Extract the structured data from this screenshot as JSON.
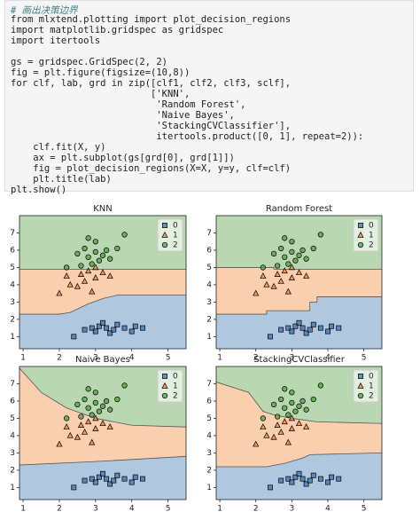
{
  "code": {
    "lines": [
      "# 画出决策边界",
      "from mlxtend.plotting import plot_decision_regions",
      "import matplotlib.gridspec as gridspec",
      "import itertools",
      "gs = gridspec.GridSpec(2, 2)",
      "fig = plt.figure(figsize=(10,8))",
      "for clf, lab, grd in zip([clf1, clf2, clf3, sclf],",
      "                         ['KNN',",
      "                          'Random Forest',",
      "                          'Naive Bayes',",
      "                          'StackingCVClassifier'],",
      "                          itertools.product([0, 1], repeat=2)):",
      "    clf.fit(X, y)",
      "    ax = plt.subplot(gs[grd[0], grd[1]])",
      "    fig = plot_decision_regions(X=X, y=y, clf=clf)",
      "    plt.title(lab)",
      "plt.show()"
    ]
  },
  "chart_data": [
    {
      "type": "decision_regions",
      "title": "KNN",
      "xlim": [
        0.9,
        5.5
      ],
      "ylim": [
        0.3,
        8.0
      ],
      "xticks": [
        1,
        2,
        3,
        4,
        5
      ],
      "yticks": [
        1,
        2,
        3,
        4,
        5,
        6,
        7
      ],
      "legend": "upper right",
      "series": [
        {
          "name": "0",
          "color": "#3a76af",
          "marker": "square",
          "x": [
            2.4,
            2.7,
            2.9,
            3.0,
            3.1,
            3.2,
            3.3,
            3.4,
            3.5,
            3.6,
            3.8,
            4.0,
            4.1,
            4.3
          ],
          "values": [
            1.0,
            1.4,
            1.5,
            1.3,
            1.6,
            1.8,
            1.5,
            1.2,
            1.4,
            1.7,
            1.5,
            1.3,
            1.6,
            1.5
          ]
        },
        {
          "name": "1",
          "color": "#ef8636",
          "marker": "triangle",
          "x": [
            2.0,
            2.2,
            2.3,
            2.5,
            2.6,
            2.7,
            2.8,
            2.9,
            3.0,
            3.0,
            3.2,
            3.4
          ],
          "values": [
            3.5,
            4.5,
            4.0,
            3.9,
            4.6,
            4.2,
            4.8,
            3.6,
            4.4,
            5.0,
            4.7,
            4.5
          ]
        },
        {
          "name": "2",
          "color": "#519e3e",
          "marker": "circle",
          "x": [
            2.2,
            2.5,
            2.6,
            2.7,
            2.8,
            2.8,
            2.9,
            3.0,
            3.0,
            3.1,
            3.2,
            3.3,
            3.4,
            3.6,
            3.8
          ],
          "values": [
            5.0,
            5.8,
            5.1,
            6.1,
            5.6,
            6.7,
            5.2,
            5.9,
            6.5,
            5.4,
            5.7,
            6.0,
            5.5,
            6.1,
            6.9
          ]
        }
      ],
      "boundaries": [
        {
          "x": [
            0.9,
            2.0,
            2.3,
            2.8,
            3.2,
            3.6,
            5.5
          ],
          "values": [
            2.3,
            2.3,
            2.4,
            2.9,
            3.2,
            3.4,
            3.4
          ]
        },
        {
          "x": [
            0.9,
            5.5
          ],
          "values": [
            4.9,
            4.9
          ]
        }
      ]
    },
    {
      "type": "decision_regions",
      "title": "Random Forest",
      "xlim": [
        0.9,
        5.5
      ],
      "ylim": [
        0.3,
        8.0
      ],
      "xticks": [
        1,
        2,
        3,
        4,
        5
      ],
      "yticks": [
        1,
        2,
        3,
        4,
        5,
        6,
        7
      ],
      "legend": "upper right",
      "series": [
        {
          "name": "0",
          "color": "#3a76af",
          "marker": "square",
          "x": [
            2.4,
            2.7,
            2.9,
            3.0,
            3.1,
            3.2,
            3.3,
            3.4,
            3.5,
            3.6,
            3.8,
            4.0,
            4.1,
            4.3
          ],
          "values": [
            1.0,
            1.4,
            1.5,
            1.3,
            1.6,
            1.8,
            1.5,
            1.2,
            1.4,
            1.7,
            1.5,
            1.3,
            1.6,
            1.5
          ]
        },
        {
          "name": "1",
          "color": "#ef8636",
          "marker": "triangle",
          "x": [
            2.0,
            2.2,
            2.3,
            2.5,
            2.6,
            2.7,
            2.8,
            2.9,
            3.0,
            3.0,
            3.2,
            3.4
          ],
          "values": [
            3.5,
            4.5,
            4.0,
            3.9,
            4.6,
            4.2,
            4.8,
            3.6,
            4.4,
            5.0,
            4.7,
            4.5
          ]
        },
        {
          "name": "2",
          "color": "#519e3e",
          "marker": "circle",
          "x": [
            2.2,
            2.5,
            2.6,
            2.7,
            2.8,
            2.8,
            2.9,
            3.0,
            3.0,
            3.1,
            3.2,
            3.3,
            3.4,
            3.6,
            3.8
          ],
          "values": [
            5.0,
            5.8,
            5.1,
            6.1,
            5.6,
            6.7,
            5.2,
            5.9,
            6.5,
            5.4,
            5.7,
            6.0,
            5.5,
            6.1,
            6.9
          ]
        }
      ],
      "boundaries": [
        {
          "x": [
            0.9,
            2.3,
            2.3,
            3.5,
            3.5,
            3.7,
            3.7,
            5.5
          ],
          "values": [
            2.3,
            2.3,
            2.5,
            2.5,
            3.0,
            3.0,
            3.3,
            3.3
          ]
        },
        {
          "x": [
            0.9,
            2.5,
            2.5,
            5.5
          ],
          "values": [
            5.0,
            5.0,
            4.9,
            4.9
          ]
        }
      ]
    },
    {
      "type": "decision_regions",
      "title": "Naive Bayes",
      "xlim": [
        0.9,
        5.5
      ],
      "ylim": [
        0.3,
        8.0
      ],
      "xticks": [
        1,
        2,
        3,
        4,
        5
      ],
      "yticks": [
        1,
        2,
        3,
        4,
        5,
        6,
        7
      ],
      "legend": "upper right",
      "series": [
        {
          "name": "0",
          "color": "#3a76af",
          "marker": "square",
          "x": [
            2.4,
            2.7,
            2.9,
            3.0,
            3.1,
            3.2,
            3.3,
            3.4,
            3.5,
            3.6,
            3.8,
            4.0,
            4.1,
            4.3
          ],
          "values": [
            1.0,
            1.4,
            1.5,
            1.3,
            1.6,
            1.8,
            1.5,
            1.2,
            1.4,
            1.7,
            1.5,
            1.3,
            1.6,
            1.5
          ]
        },
        {
          "name": "1",
          "color": "#ef8636",
          "marker": "triangle",
          "x": [
            2.0,
            2.2,
            2.3,
            2.5,
            2.6,
            2.7,
            2.8,
            2.9,
            3.0,
            3.0,
            3.2,
            3.4
          ],
          "values": [
            3.5,
            4.5,
            4.0,
            3.9,
            4.6,
            4.2,
            4.8,
            3.6,
            4.4,
            5.0,
            4.7,
            4.5
          ]
        },
        {
          "name": "2",
          "color": "#519e3e",
          "marker": "circle",
          "x": [
            2.2,
            2.5,
            2.6,
            2.7,
            2.8,
            2.8,
            2.9,
            3.0,
            3.0,
            3.1,
            3.2,
            3.3,
            3.4,
            3.6,
            3.8
          ],
          "values": [
            5.0,
            5.8,
            5.1,
            6.1,
            5.6,
            6.7,
            5.2,
            5.9,
            6.5,
            5.4,
            5.7,
            6.0,
            5.5,
            6.1,
            6.9
          ]
        }
      ],
      "boundaries": [
        {
          "x": [
            0.9,
            3.0,
            5.5
          ],
          "values": [
            2.3,
            2.5,
            2.8
          ]
        },
        {
          "x": [
            0.9,
            1.5,
            2.2,
            3.0,
            4.0,
            5.5
          ],
          "values": [
            7.9,
            6.5,
            5.6,
            5.0,
            4.6,
            4.5
          ]
        }
      ]
    },
    {
      "type": "decision_regions",
      "title": "StackingCVClassifier",
      "xlim": [
        0.9,
        5.5
      ],
      "ylim": [
        0.3,
        8.0
      ],
      "xticks": [
        1,
        2,
        3,
        4,
        5
      ],
      "yticks": [
        1,
        2,
        3,
        4,
        5,
        6,
        7
      ],
      "legend": "upper right",
      "series": [
        {
          "name": "0",
          "color": "#3a76af",
          "marker": "square",
          "x": [
            2.4,
            2.7,
            2.9,
            3.0,
            3.1,
            3.2,
            3.3,
            3.4,
            3.5,
            3.6,
            3.8,
            4.0,
            4.1,
            4.3
          ],
          "values": [
            1.0,
            1.4,
            1.5,
            1.3,
            1.6,
            1.8,
            1.5,
            1.2,
            1.4,
            1.7,
            1.5,
            1.3,
            1.6,
            1.5
          ]
        },
        {
          "name": "1",
          "color": "#ef8636",
          "marker": "triangle",
          "x": [
            2.0,
            2.2,
            2.3,
            2.5,
            2.6,
            2.7,
            2.8,
            2.9,
            3.0,
            3.0,
            3.2,
            3.4
          ],
          "values": [
            3.5,
            4.5,
            4.0,
            3.9,
            4.6,
            4.2,
            4.8,
            3.6,
            4.4,
            5.0,
            4.7,
            4.5
          ]
        },
        {
          "name": "2",
          "color": "#519e3e",
          "marker": "circle",
          "x": [
            2.2,
            2.5,
            2.6,
            2.7,
            2.8,
            2.8,
            2.9,
            3.0,
            3.0,
            3.1,
            3.2,
            3.3,
            3.4,
            3.6,
            3.8
          ],
          "values": [
            5.0,
            5.8,
            5.1,
            6.1,
            5.6,
            6.7,
            5.2,
            5.9,
            6.5,
            5.4,
            5.7,
            6.0,
            5.5,
            6.1,
            6.9
          ]
        }
      ],
      "boundaries": [
        {
          "x": [
            0.9,
            2.3,
            2.8,
            3.3,
            3.5,
            5.5
          ],
          "values": [
            2.2,
            2.2,
            2.4,
            2.7,
            2.9,
            3.0
          ]
        },
        {
          "x": [
            0.9,
            1.8,
            2.2,
            2.5,
            3.0,
            3.7,
            5.5
          ],
          "values": [
            7.1,
            6.5,
            5.4,
            5.2,
            5.0,
            4.8,
            4.7
          ]
        }
      ]
    }
  ]
}
